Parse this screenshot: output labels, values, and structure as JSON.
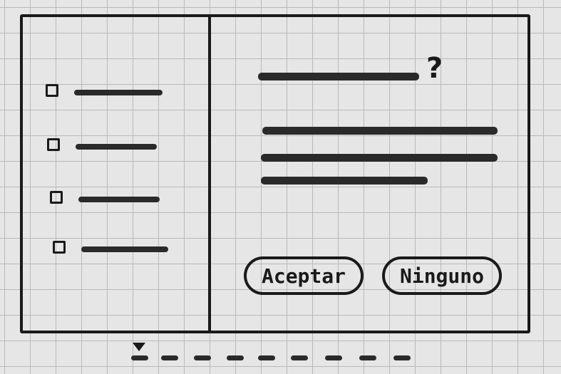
{
  "dialog": {
    "question": {
      "icon": "question-mark-icon",
      "glyph": "?"
    },
    "options": [
      {
        "id": "option-1",
        "checked": false
      },
      {
        "id": "option-2",
        "checked": false
      },
      {
        "id": "option-3",
        "checked": false
      },
      {
        "id": "option-4",
        "checked": false
      }
    ],
    "buttons": {
      "accept_label": "Aceptar",
      "none_label": "Ninguno"
    }
  },
  "colors": {
    "ink": "#1a1a1a",
    "paper": "#e6e6e6",
    "grid": "#b9b9b9"
  }
}
